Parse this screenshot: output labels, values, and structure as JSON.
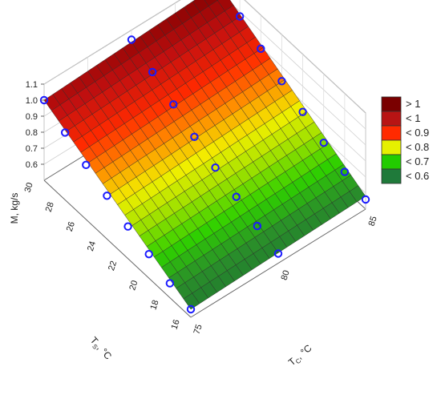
{
  "chart_data": {
    "type": "surface3d",
    "title": "",
    "zlabel": "M, kg/s",
    "xlabel_main": "T",
    "xlabel_sub": "S",
    "xlabel_unit": ", °C",
    "ylabel_main": "T",
    "ylabel_sub": "C",
    "ylabel_unit": ", °C",
    "ts_range": [
      16,
      30
    ],
    "tc_range": [
      75,
      85
    ],
    "z_range": [
      0.5,
      1.1
    ],
    "z_ticks": [
      "1.1",
      "1.0",
      "0.9",
      "0.8",
      "0.7",
      "0.6"
    ],
    "ts_ticks": [
      "30",
      "28",
      "26",
      "24",
      "22",
      "20",
      "18",
      "16"
    ],
    "tc_ticks": [
      "75",
      "80",
      "85"
    ],
    "grid": true,
    "legend_position": "right",
    "legend": [
      {
        "label": "> 1",
        "color": "#7a0000"
      },
      {
        "label": "< 1",
        "color": "#b81414"
      },
      {
        "label": "< 0.9",
        "color": "#ff2a00"
      },
      {
        "label": "< 0.8",
        "color": "#e6f000"
      },
      {
        "label": "< 0.7",
        "color": "#22cc00"
      },
      {
        "label": "< 0.6",
        "color": "#1f7a3a"
      }
    ],
    "points": [
      {
        "ts": 30,
        "tc": 75,
        "m": 1.0
      },
      {
        "ts": 28,
        "tc": 75,
        "m": 0.92
      },
      {
        "ts": 26,
        "tc": 75,
        "m": 0.84
      },
      {
        "ts": 24,
        "tc": 75,
        "m": 0.77
      },
      {
        "ts": 22,
        "tc": 75,
        "m": 0.7
      },
      {
        "ts": 20,
        "tc": 75,
        "m": 0.65
      },
      {
        "ts": 18,
        "tc": 75,
        "m": 0.59
      },
      {
        "ts": 16,
        "tc": 75,
        "m": 0.55
      },
      {
        "ts": 30,
        "tc": 80,
        "m": 1.04
      },
      {
        "ts": 28,
        "tc": 80,
        "m": 0.96
      },
      {
        "ts": 26,
        "tc": 80,
        "m": 0.88
      },
      {
        "ts": 24,
        "tc": 80,
        "m": 0.8
      },
      {
        "ts": 22,
        "tc": 80,
        "m": 0.73
      },
      {
        "ts": 20,
        "tc": 80,
        "m": 0.67
      },
      {
        "ts": 18,
        "tc": 80,
        "m": 0.61
      },
      {
        "ts": 16,
        "tc": 80,
        "m": 0.56
      },
      {
        "ts": 30,
        "tc": 85,
        "m": 1.05
      },
      {
        "ts": 28,
        "tc": 85,
        "m": 0.97
      },
      {
        "ts": 26,
        "tc": 85,
        "m": 0.89
      },
      {
        "ts": 24,
        "tc": 85,
        "m": 0.81
      },
      {
        "ts": 22,
        "tc": 85,
        "m": 0.74
      },
      {
        "ts": 20,
        "tc": 85,
        "m": 0.67
      },
      {
        "ts": 18,
        "tc": 85,
        "m": 0.61
      },
      {
        "ts": 16,
        "tc": 85,
        "m": 0.56
      }
    ]
  }
}
